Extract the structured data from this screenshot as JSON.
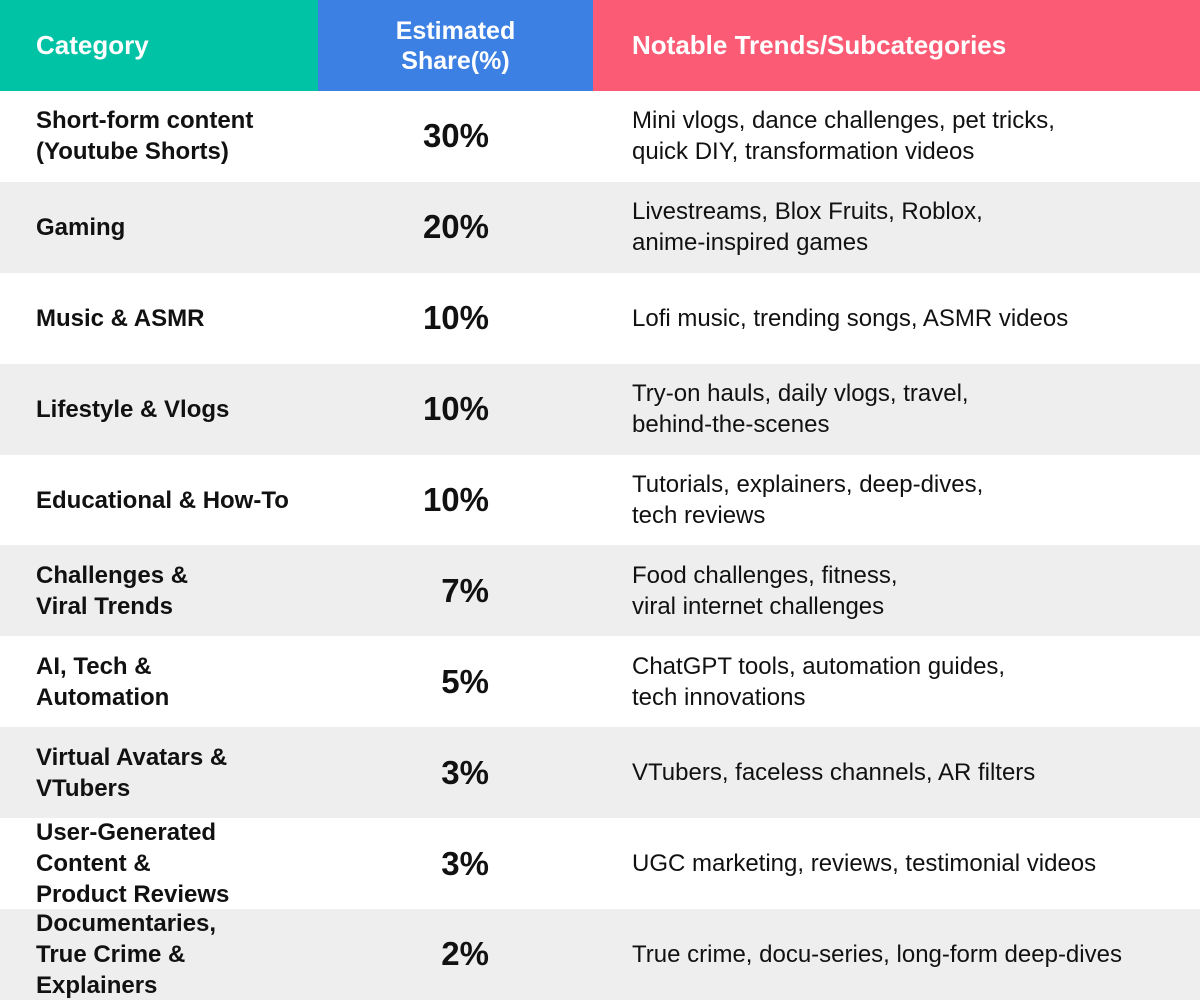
{
  "colors": {
    "header_category": "#00c3a6",
    "header_share": "#3d80e4",
    "header_trends": "#fc5b75",
    "row_alt": "#eeeeee"
  },
  "chart_data": {
    "type": "table",
    "columns": [
      "Category",
      "Estimated Share(%)",
      "Notable Trends/Subcategories"
    ],
    "header": {
      "category": "Category",
      "share_line1": "Estimated",
      "share_line2": "Share(%)",
      "trends": "Notable Trends/Subcategories"
    },
    "rows": [
      {
        "category_lines": [
          "Short-form content",
          "(Youtube Shorts)"
        ],
        "share": "30%",
        "trend_lines": [
          "Mini vlogs, dance challenges, pet tricks,",
          "quick DIY, transformation videos"
        ]
      },
      {
        "category_lines": [
          "Gaming"
        ],
        "share": "20%",
        "trend_lines": [
          "Livestreams, Blox Fruits, Roblox,",
          "anime-inspired games"
        ]
      },
      {
        "category_lines": [
          "Music & ASMR"
        ],
        "share": "10%",
        "trend_lines": [
          "Lofi music, trending songs, ASMR videos"
        ]
      },
      {
        "category_lines": [
          "Lifestyle & Vlogs"
        ],
        "share": "10%",
        "trend_lines": [
          "Try-on hauls, daily vlogs, travel,",
          "behind-the-scenes"
        ]
      },
      {
        "category_lines": [
          "Educational & How-To"
        ],
        "share": "10%",
        "trend_lines": [
          "Tutorials, explainers, deep-dives,",
          "tech reviews"
        ]
      },
      {
        "category_lines": [
          "Challenges &",
          "Viral Trends"
        ],
        "share": "7%",
        "trend_lines": [
          "Food challenges, fitness,",
          "viral internet challenges"
        ]
      },
      {
        "category_lines": [
          "AI, Tech &",
          "Automation"
        ],
        "share": "5%",
        "trend_lines": [
          "ChatGPT tools, automation guides,",
          "tech innovations"
        ]
      },
      {
        "category_lines": [
          "Virtual Avatars &",
          "VTubers"
        ],
        "share": "3%",
        "trend_lines": [
          "VTubers, faceless channels, AR filters"
        ]
      },
      {
        "category_lines": [
          "User-Generated Content &",
          "Product Reviews"
        ],
        "share": "3%",
        "trend_lines": [
          "UGC marketing, reviews, testimonial videos"
        ]
      },
      {
        "category_lines": [
          "Documentaries,",
          "True Crime & Explainers"
        ],
        "share": "2%",
        "trend_lines": [
          "True crime, docu-series, long-form deep-dives"
        ]
      }
    ]
  }
}
